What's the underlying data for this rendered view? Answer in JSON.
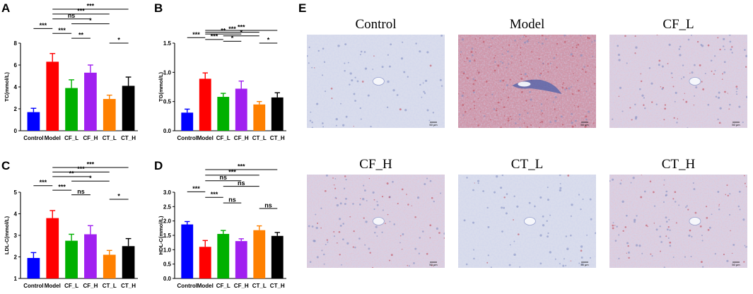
{
  "chart_data": [
    {
      "id": "A",
      "type": "bar",
      "panel_label": "A",
      "ylabel": "TC(mmol/L)",
      "categories": [
        "Control",
        "Model",
        "CF_L",
        "CF_H",
        "CT_L",
        "CT_H"
      ],
      "values": [
        1.7,
        6.3,
        3.9,
        5.3,
        2.9,
        4.1
      ],
      "errors": [
        0.35,
        0.75,
        0.75,
        0.7,
        0.35,
        0.8
      ],
      "colors": [
        "#0000ff",
        "#ff0000",
        "#00b000",
        "#a020f0",
        "#ff8000",
        "#000000"
      ],
      "ylim": [
        0,
        8
      ],
      "yticks": [
        0,
        2,
        4,
        6,
        8
      ],
      "comparisons": [
        {
          "from": 0,
          "to": 1,
          "label": "***"
        },
        {
          "from": 1,
          "to": 2,
          "label": "***"
        },
        {
          "from": 1,
          "to": 3,
          "label": "ns"
        },
        {
          "from": 1,
          "to": 4,
          "label": "***"
        },
        {
          "from": 1,
          "to": 5,
          "label": "***"
        },
        {
          "from": 2,
          "to": 3,
          "label": "**"
        },
        {
          "from": 2,
          "to": 4,
          "label": "*"
        },
        {
          "from": 4,
          "to": 5,
          "label": "*"
        }
      ]
    },
    {
      "id": "B",
      "type": "bar",
      "panel_label": "B",
      "ylabel": "TG(mmol/L)",
      "categories": [
        "Control",
        "Model",
        "CF_L",
        "CF_H",
        "CT_L",
        "CT_H"
      ],
      "values": [
        0.31,
        0.89,
        0.58,
        0.72,
        0.45,
        0.57
      ],
      "errors": [
        0.06,
        0.1,
        0.06,
        0.13,
        0.05,
        0.08
      ],
      "colors": [
        "#0000ff",
        "#ff0000",
        "#00b000",
        "#a020f0",
        "#ff8000",
        "#000000"
      ],
      "ylim": [
        0,
        1.5
      ],
      "yticks": [
        0.0,
        0.5,
        1.0,
        1.5
      ],
      "comparisons": [
        {
          "from": 0,
          "to": 1,
          "label": "***"
        },
        {
          "from": 1,
          "to": 2,
          "label": "***"
        },
        {
          "from": 1,
          "to": 3,
          "label": "**"
        },
        {
          "from": 1,
          "to": 4,
          "label": "***"
        },
        {
          "from": 1,
          "to": 5,
          "label": "***"
        },
        {
          "from": 2,
          "to": 3,
          "label": "*"
        },
        {
          "from": 2,
          "to": 4,
          "label": "*"
        },
        {
          "from": 4,
          "to": 5,
          "label": "*"
        }
      ]
    },
    {
      "id": "C",
      "type": "bar",
      "panel_label": "C",
      "ylabel": "LDL-C(mmol/L)",
      "categories": [
        "Control",
        "Model",
        "CF_L",
        "CF_H",
        "CT_L",
        "CT_H"
      ],
      "values": [
        1.95,
        3.8,
        2.75,
        3.05,
        2.1,
        2.5
      ],
      "errors": [
        0.25,
        0.35,
        0.3,
        0.4,
        0.2,
        0.35
      ],
      "colors": [
        "#0000ff",
        "#ff0000",
        "#00b000",
        "#a020f0",
        "#ff8000",
        "#000000"
      ],
      "ylim": [
        1,
        5
      ],
      "yticks": [
        1,
        2,
        3,
        4,
        5
      ],
      "comparisons": [
        {
          "from": 0,
          "to": 1,
          "label": "***"
        },
        {
          "from": 1,
          "to": 2,
          "label": "***"
        },
        {
          "from": 1,
          "to": 3,
          "label": "**"
        },
        {
          "from": 1,
          "to": 4,
          "label": "***"
        },
        {
          "from": 1,
          "to": 5,
          "label": "***"
        },
        {
          "from": 2,
          "to": 3,
          "label": "ns"
        },
        {
          "from": 2,
          "to": 4,
          "label": "*"
        },
        {
          "from": 4,
          "to": 5,
          "label": "*"
        }
      ]
    },
    {
      "id": "D",
      "type": "bar",
      "panel_label": "D",
      "ylabel": "HDL-C(mmol/L)",
      "categories": [
        "Control",
        "Model",
        "CF_L",
        "CF_H",
        "CT_L",
        "CT_H"
      ],
      "values": [
        1.88,
        1.1,
        1.55,
        1.3,
        1.68,
        1.48
      ],
      "errors": [
        0.1,
        0.22,
        0.12,
        0.08,
        0.15,
        0.12
      ],
      "colors": [
        "#0000ff",
        "#ff0000",
        "#00b000",
        "#a020f0",
        "#ff8000",
        "#000000"
      ],
      "ylim": [
        0,
        3.0
      ],
      "yticks": [
        0.0,
        0.5,
        1.0,
        1.5,
        2.0,
        2.5,
        3.0
      ],
      "comparisons": [
        {
          "from": 0,
          "to": 1,
          "label": "***"
        },
        {
          "from": 1,
          "to": 2,
          "label": "***"
        },
        {
          "from": 1,
          "to": 3,
          "label": "ns"
        },
        {
          "from": 1,
          "to": 4,
          "label": "***"
        },
        {
          "from": 1,
          "to": 5,
          "label": "***"
        },
        {
          "from": 2,
          "to": 3,
          "label": "ns"
        },
        {
          "from": 2,
          "to": 4,
          "label": "ns"
        },
        {
          "from": 4,
          "to": 5,
          "label": "ns"
        }
      ]
    }
  ],
  "histology": {
    "panel_label": "E",
    "scale_bar_text": "50 μm",
    "panels": [
      {
        "title": "Control",
        "stain": "light"
      },
      {
        "title": "Model",
        "stain": "heavy"
      },
      {
        "title": "CF_L",
        "stain": "medium"
      },
      {
        "title": "CF_H",
        "stain": "medium"
      },
      {
        "title": "CT_L",
        "stain": "light"
      },
      {
        "title": "CT_H",
        "stain": "medium"
      }
    ]
  },
  "colors": {
    "tissue_light": "#d9dcec",
    "tissue_medium": "#dccfe0",
    "tissue_heavy": "#c99aac",
    "nucleus": "#7d8bbf",
    "lipid": "#c0505f"
  }
}
